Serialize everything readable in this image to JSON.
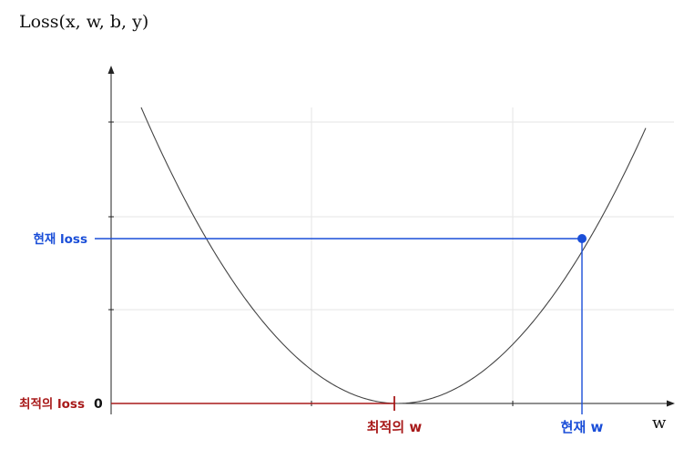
{
  "title": "Loss(x, w, b, y)",
  "x_axis_name": "w",
  "labels": {
    "zero": "0",
    "optimal_loss": "최적의 loss",
    "current_loss": "현재 loss",
    "optimal_w": "최적의 w",
    "current_w": "현재 w"
  },
  "colors": {
    "curve": "#444444",
    "axis": "#222222",
    "grid": "#e6e6e6",
    "optimal": "#a81a1a",
    "current": "#1a4ed8"
  },
  "icons": {
    "current_marker": "filled-circle-icon",
    "optimal_marker": "tick-mark-icon"
  }
}
